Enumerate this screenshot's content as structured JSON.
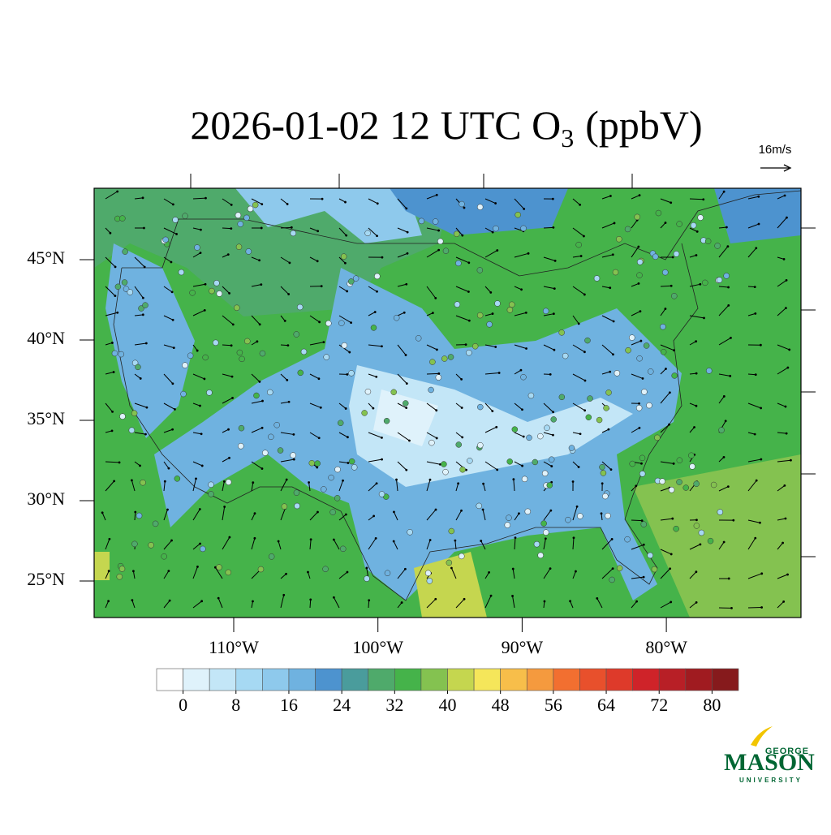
{
  "chart_data": {
    "type": "map",
    "title": {
      "text": "2026-01-02 12 UTC O",
      "subscript": "3",
      "suffix": "(ppbV)"
    },
    "wind_reference": "16m/s",
    "lat_ticks": [
      {
        "value": 45,
        "label": "45°N"
      },
      {
        "value": 40,
        "label": "40°N"
      },
      {
        "value": 35,
        "label": "35°N"
      },
      {
        "value": 30,
        "label": "30°N"
      },
      {
        "value": 25,
        "label": "25°N"
      }
    ],
    "lon_ticks": [
      {
        "value": -110,
        "label": "110°W"
      },
      {
        "value": -100,
        "label": "100°W"
      },
      {
        "value": -90,
        "label": "90°W"
      },
      {
        "value": -80,
        "label": "80°W"
      }
    ],
    "colorbar": {
      "lim": [
        -4,
        84
      ],
      "colors": [
        "#ffffff",
        "#dff2fb",
        "#c3e6f7",
        "#a6d9f3",
        "#8ec9ec",
        "#6fb2e0",
        "#4d93cf",
        "#4a9c9c",
        "#4faa6b",
        "#45b34a",
        "#84c250",
        "#c5d64f",
        "#f5e65a",
        "#f7be4a",
        "#f59a3e",
        "#f26f30",
        "#e8502c",
        "#de3a2a",
        "#cf2329",
        "#b81f26",
        "#a01b20",
        "#861a1c"
      ],
      "ticks": [
        0,
        8,
        16,
        24,
        32,
        40,
        48,
        56,
        64,
        72,
        80
      ]
    },
    "logo": {
      "top": "GEORGE",
      "main": "MASON",
      "bottom": "UNIVERSITY"
    }
  }
}
